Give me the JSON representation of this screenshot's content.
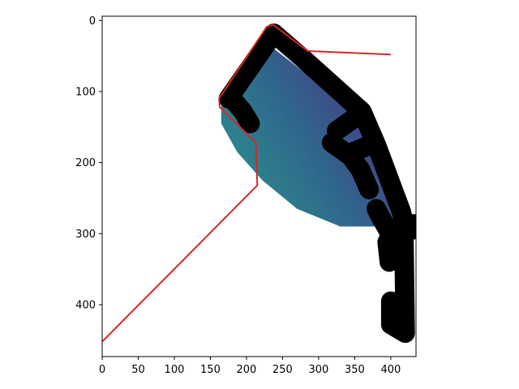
{
  "chart_data": {
    "type": "image-plot",
    "title": "",
    "xlabel": "",
    "ylabel": "",
    "xlim": [
      0,
      435
    ],
    "ylim": [
      473,
      -6
    ],
    "y_inverted": true,
    "grid": false,
    "xticks": [
      0,
      50,
      100,
      150,
      200,
      250,
      300,
      350,
      400
    ],
    "yticks": [
      0,
      100,
      200,
      300,
      400
    ],
    "colors": {
      "background": "#ffffff",
      "gradient_light": "#2c8b8d",
      "gradient_mid": "#30658c",
      "gradient_dark": "#463f85",
      "black_path": "#000000",
      "red_line": "#d62728"
    },
    "gradient_region": [
      [
        165,
        120
      ],
      [
        236,
        38
      ],
      [
        295,
        85
      ],
      [
        356,
        135
      ],
      [
        395,
        200
      ],
      [
        425,
        275
      ],
      [
        395,
        290
      ],
      [
        330,
        290
      ],
      [
        270,
        265
      ],
      [
        222,
        225
      ],
      [
        187,
        185
      ],
      [
        165,
        145
      ]
    ],
    "black_path_segments": [
      [
        [
          175,
          110
        ],
        [
          238,
          18
        ],
        [
          280,
          55
        ],
        [
          360,
          128
        ],
        [
          380,
          175
        ],
        [
          415,
          270
        ],
        [
          418,
          285
        ],
        [
          420,
          440
        ],
        [
          400,
          428
        ],
        [
          400,
          395
        ]
      ],
      [
        [
          325,
          155
        ],
        [
          360,
          130
        ]
      ],
      [
        [
          372,
          175
        ],
        [
          340,
          188
        ],
        [
          318,
          172
        ]
      ],
      [
        [
          342,
          188
        ],
        [
          358,
          210
        ],
        [
          370,
          238
        ]
      ],
      [
        [
          380,
          265
        ],
        [
          385,
          275
        ],
        [
          400,
          302
        ],
        [
          395,
          312
        ],
        [
          398,
          340
        ]
      ],
      [
        [
          178,
          108
        ],
        [
          195,
          128
        ],
        [
          205,
          145
        ]
      ],
      [
        [
          400,
          298
        ],
        [
          470,
          290
        ],
        [
          418,
          285
        ]
      ]
    ],
    "red_line_points": [
      [
        400,
        48
      ],
      [
        285,
        43
      ],
      [
        237,
        6
      ],
      [
        228,
        9
      ],
      [
        162,
        110
      ],
      [
        163,
        122
      ],
      [
        213,
        172
      ],
      [
        215,
        232
      ],
      [
        0,
        452
      ]
    ]
  }
}
